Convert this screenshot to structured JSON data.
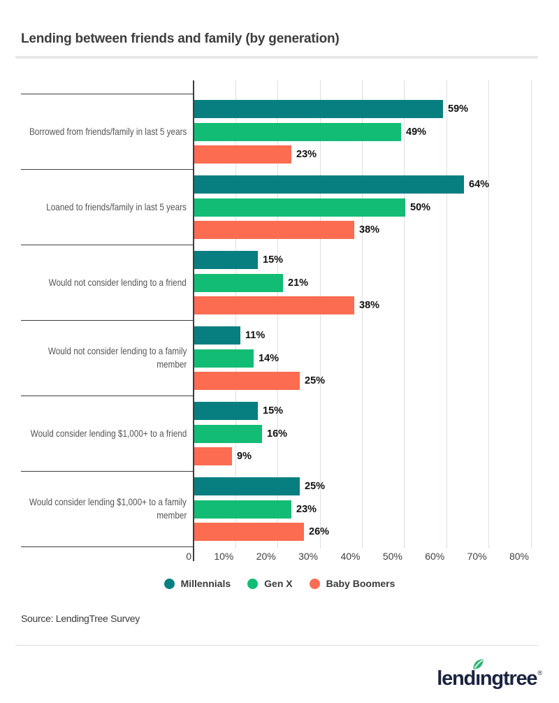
{
  "title": "Lending between friends and family (by generation)",
  "chart_data": {
    "type": "bar",
    "orientation": "horizontal",
    "title": "Lending between friends and family (by generation)",
    "categories": [
      "Borrowed from friends/family in last 5 years",
      "Loaned to friends/family in last 5 years",
      "Would not consider lending to a friend",
      "Would not consider lending to a family member",
      "Would consider lending $1,000+ to a friend",
      "Would consider lending $1,000+ to a family member"
    ],
    "category_display_lines": [
      [
        "Borrowed from friends/family in last 5 years"
      ],
      [
        "Loaned to friends/family in last 5 years"
      ],
      [
        "Would not consider lending to a friend"
      ],
      [
        "Would not consider lending to a family",
        "member"
      ],
      [
        "Would consider lending $1,000+ to a friend"
      ],
      [
        "Would consider lending $1,000+ to a family",
        "member"
      ]
    ],
    "series": [
      {
        "name": "Millennials",
        "color": "#077f80",
        "values": [
          59,
          64,
          15,
          11,
          15,
          25
        ]
      },
      {
        "name": "Gen X",
        "color": "#12bc74",
        "values": [
          49,
          50,
          21,
          14,
          16,
          23
        ]
      },
      {
        "name": "Baby Boomers",
        "color": "#fb6c51",
        "values": [
          23,
          38,
          38,
          25,
          9,
          26
        ]
      }
    ],
    "value_suffix": "%",
    "xlim": [
      0,
      80
    ],
    "x_ticks": [
      "0",
      "10%",
      "20%",
      "30%",
      "40%",
      "50%",
      "60%",
      "70%",
      "80%"
    ],
    "grid": true,
    "legend_position": "bottom"
  },
  "source": "Source: LendingTree Survey",
  "footer": {
    "logo_text": "lendingtree",
    "registered": "®",
    "logo_color": "#1b2441",
    "leaf_color": "#2bb673"
  }
}
